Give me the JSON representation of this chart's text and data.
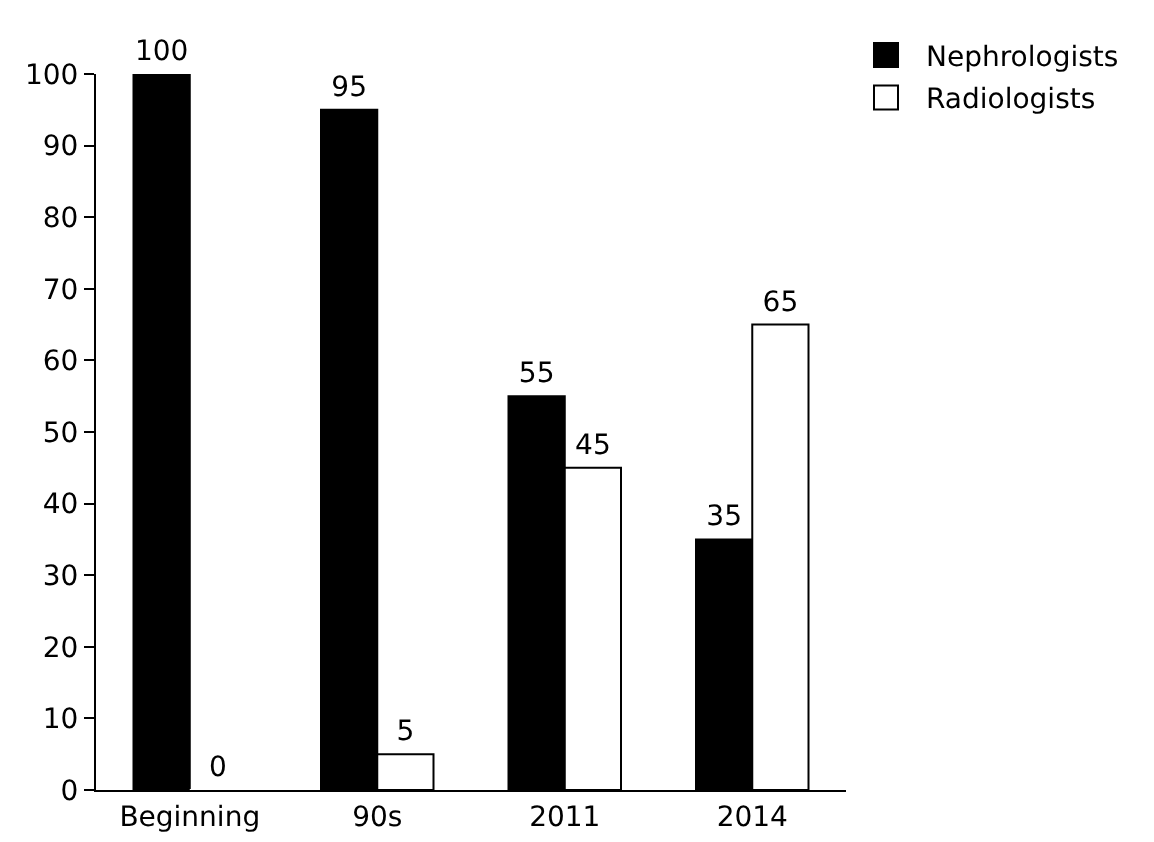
{
  "chart_data": {
    "type": "bar",
    "categories": [
      "Beginning",
      "90s",
      "2011",
      "2014"
    ],
    "series": [
      {
        "name": "Nephrologists",
        "color": "#000000",
        "values": [
          100,
          95,
          55,
          35
        ]
      },
      {
        "name": "Radiologists",
        "color": "#ffffff",
        "values": [
          0,
          5,
          45,
          65
        ]
      }
    ],
    "ylim": [
      0,
      100
    ],
    "yticks": [
      0,
      10,
      20,
      30,
      40,
      50,
      60,
      70,
      80,
      90,
      100
    ],
    "grid": false,
    "legend": "top right",
    "data_labels": true
  }
}
